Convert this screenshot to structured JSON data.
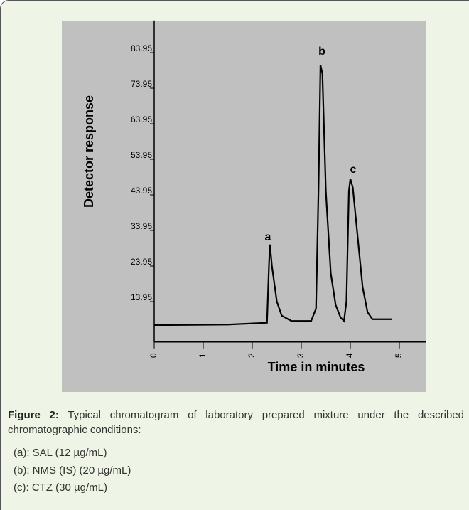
{
  "chart_data": {
    "type": "line",
    "xlabel": "Time in minutes",
    "ylabel": "Detector response",
    "x": [
      0,
      1.5,
      2.3,
      2.34,
      2.36,
      2.4,
      2.5,
      2.6,
      2.8,
      3.2,
      3.3,
      3.35,
      3.39,
      3.43,
      3.5,
      3.6,
      3.7,
      3.8,
      3.87,
      3.92,
      3.97,
      4.0,
      4.05,
      4.15,
      4.25,
      4.35,
      4.45,
      4.6,
      4.85
    ],
    "values": [
      7.35,
      7.5,
      8,
      24,
      30,
      24,
      14,
      10,
      8.5,
      8.5,
      12,
      45,
      80.5,
      78,
      45,
      22,
      13,
      9.5,
      8.5,
      14,
      45,
      48.5,
      46,
      32,
      18,
      11,
      9,
      9,
      9
    ],
    "color": "#000000",
    "xlim": [
      0,
      5.55
    ],
    "xticks": [
      0,
      1,
      2,
      3,
      4,
      5
    ],
    "ylim": [
      2,
      93
    ],
    "yticks": [
      13.95,
      23.95,
      33.95,
      43.95,
      53.95,
      63.95,
      73.95,
      83.95
    ],
    "annotations": [
      "a",
      "b",
      "c"
    ]
  },
  "caption": {
    "label": "Figure 2:",
    "text": "Typical chromatogram of laboratory prepared mixture under the described chromatographic conditions:",
    "items": [
      "(a): SAL (12 µg/mL)",
      "(b): NMS (IS) (20 µg/mL)",
      "(c): CTZ (30 µg/mL)"
    ]
  }
}
